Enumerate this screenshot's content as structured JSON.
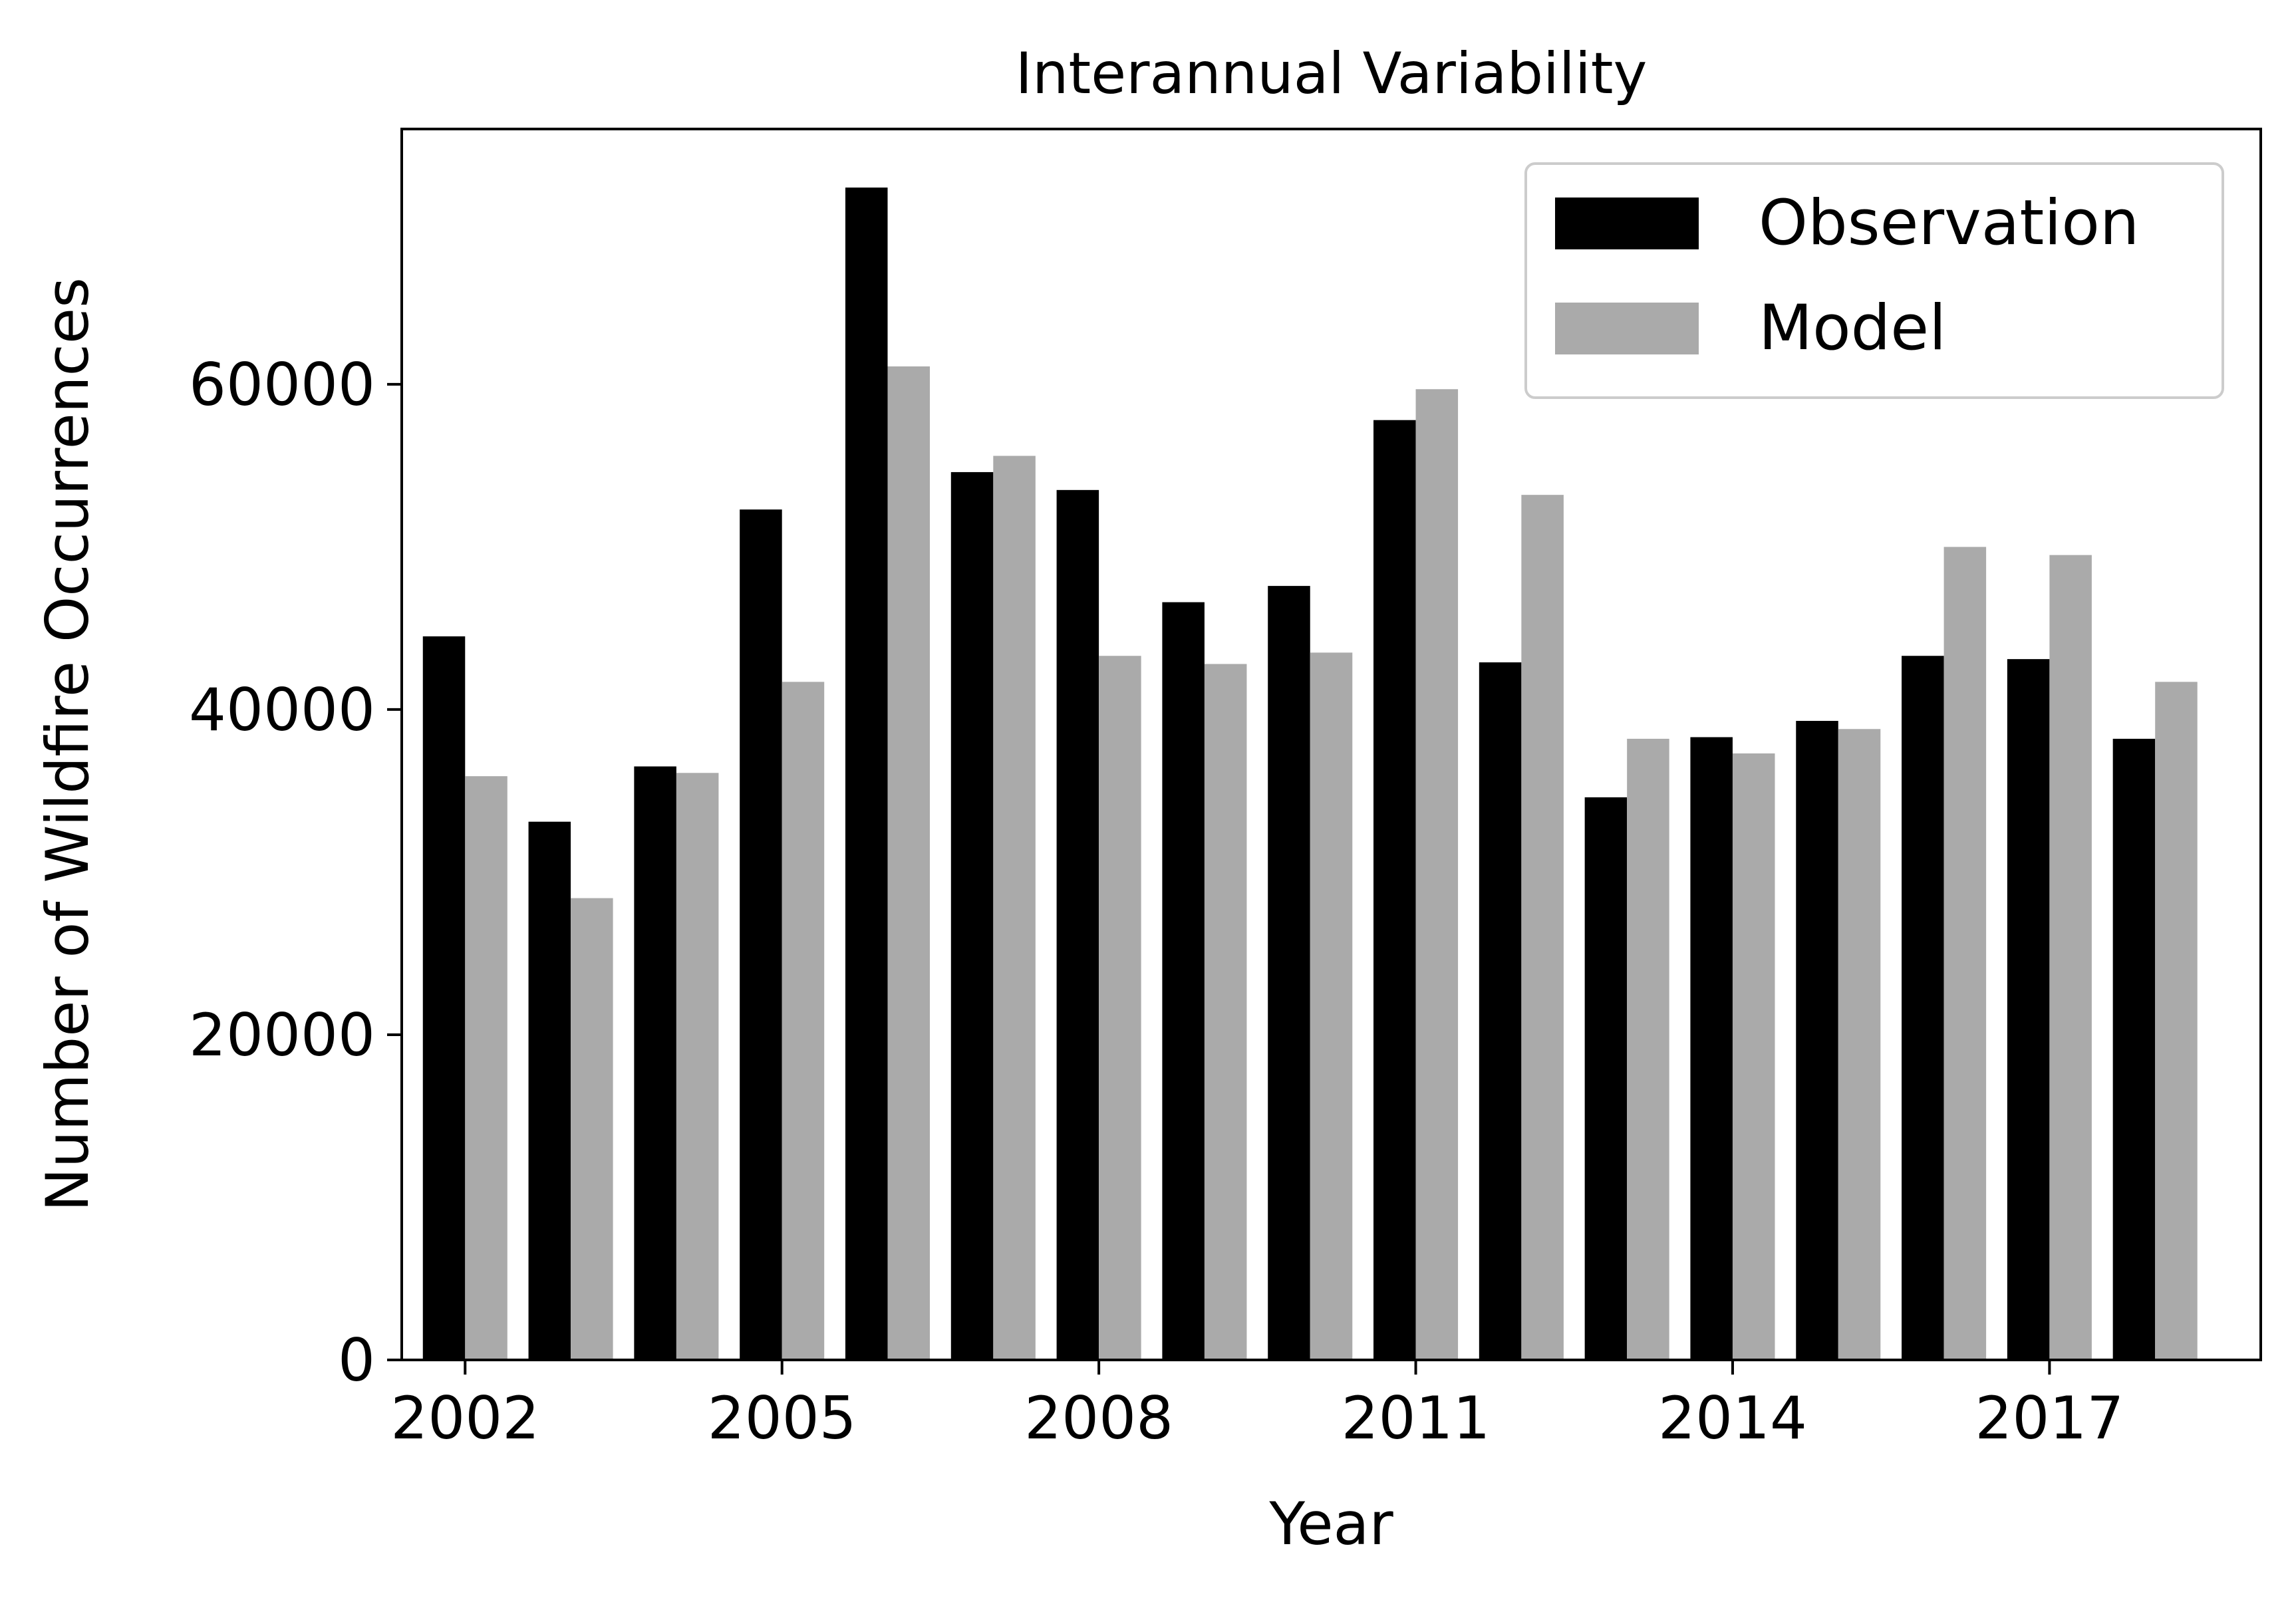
{
  "chart_data": {
    "type": "bar",
    "title": "Interannual Variability",
    "xlabel": "Year",
    "ylabel": "Number of Wildfire Occurrences",
    "x": [
      2002,
      2003,
      2004,
      2005,
      2006,
      2007,
      2008,
      2009,
      2010,
      2011,
      2012,
      2013,
      2014,
      2015,
      2016,
      2017,
      2018
    ],
    "series": [
      {
        "name": "Observation",
        "color": "#000000",
        "values": [
          44500,
          33100,
          36500,
          52300,
          72100,
          54600,
          53500,
          46600,
          47600,
          57800,
          42900,
          34600,
          38300,
          39300,
          43300,
          43100,
          38200
        ]
      },
      {
        "name": "Model",
        "color": "#aaaaaa",
        "values": [
          35900,
          28400,
          36100,
          41700,
          61100,
          55600,
          43300,
          42800,
          43500,
          59700,
          53200,
          38200,
          37300,
          38800,
          50000,
          49500,
          41700
        ]
      }
    ],
    "xticks": [
      2002,
      2005,
      2008,
      2011,
      2014,
      2017
    ],
    "yticks": [
      0,
      20000,
      40000,
      60000
    ],
    "xlim": [
      2001.4,
      2019.0
    ],
    "ylim": [
      0,
      75700
    ],
    "grid": false,
    "legend_position": "top-right"
  }
}
